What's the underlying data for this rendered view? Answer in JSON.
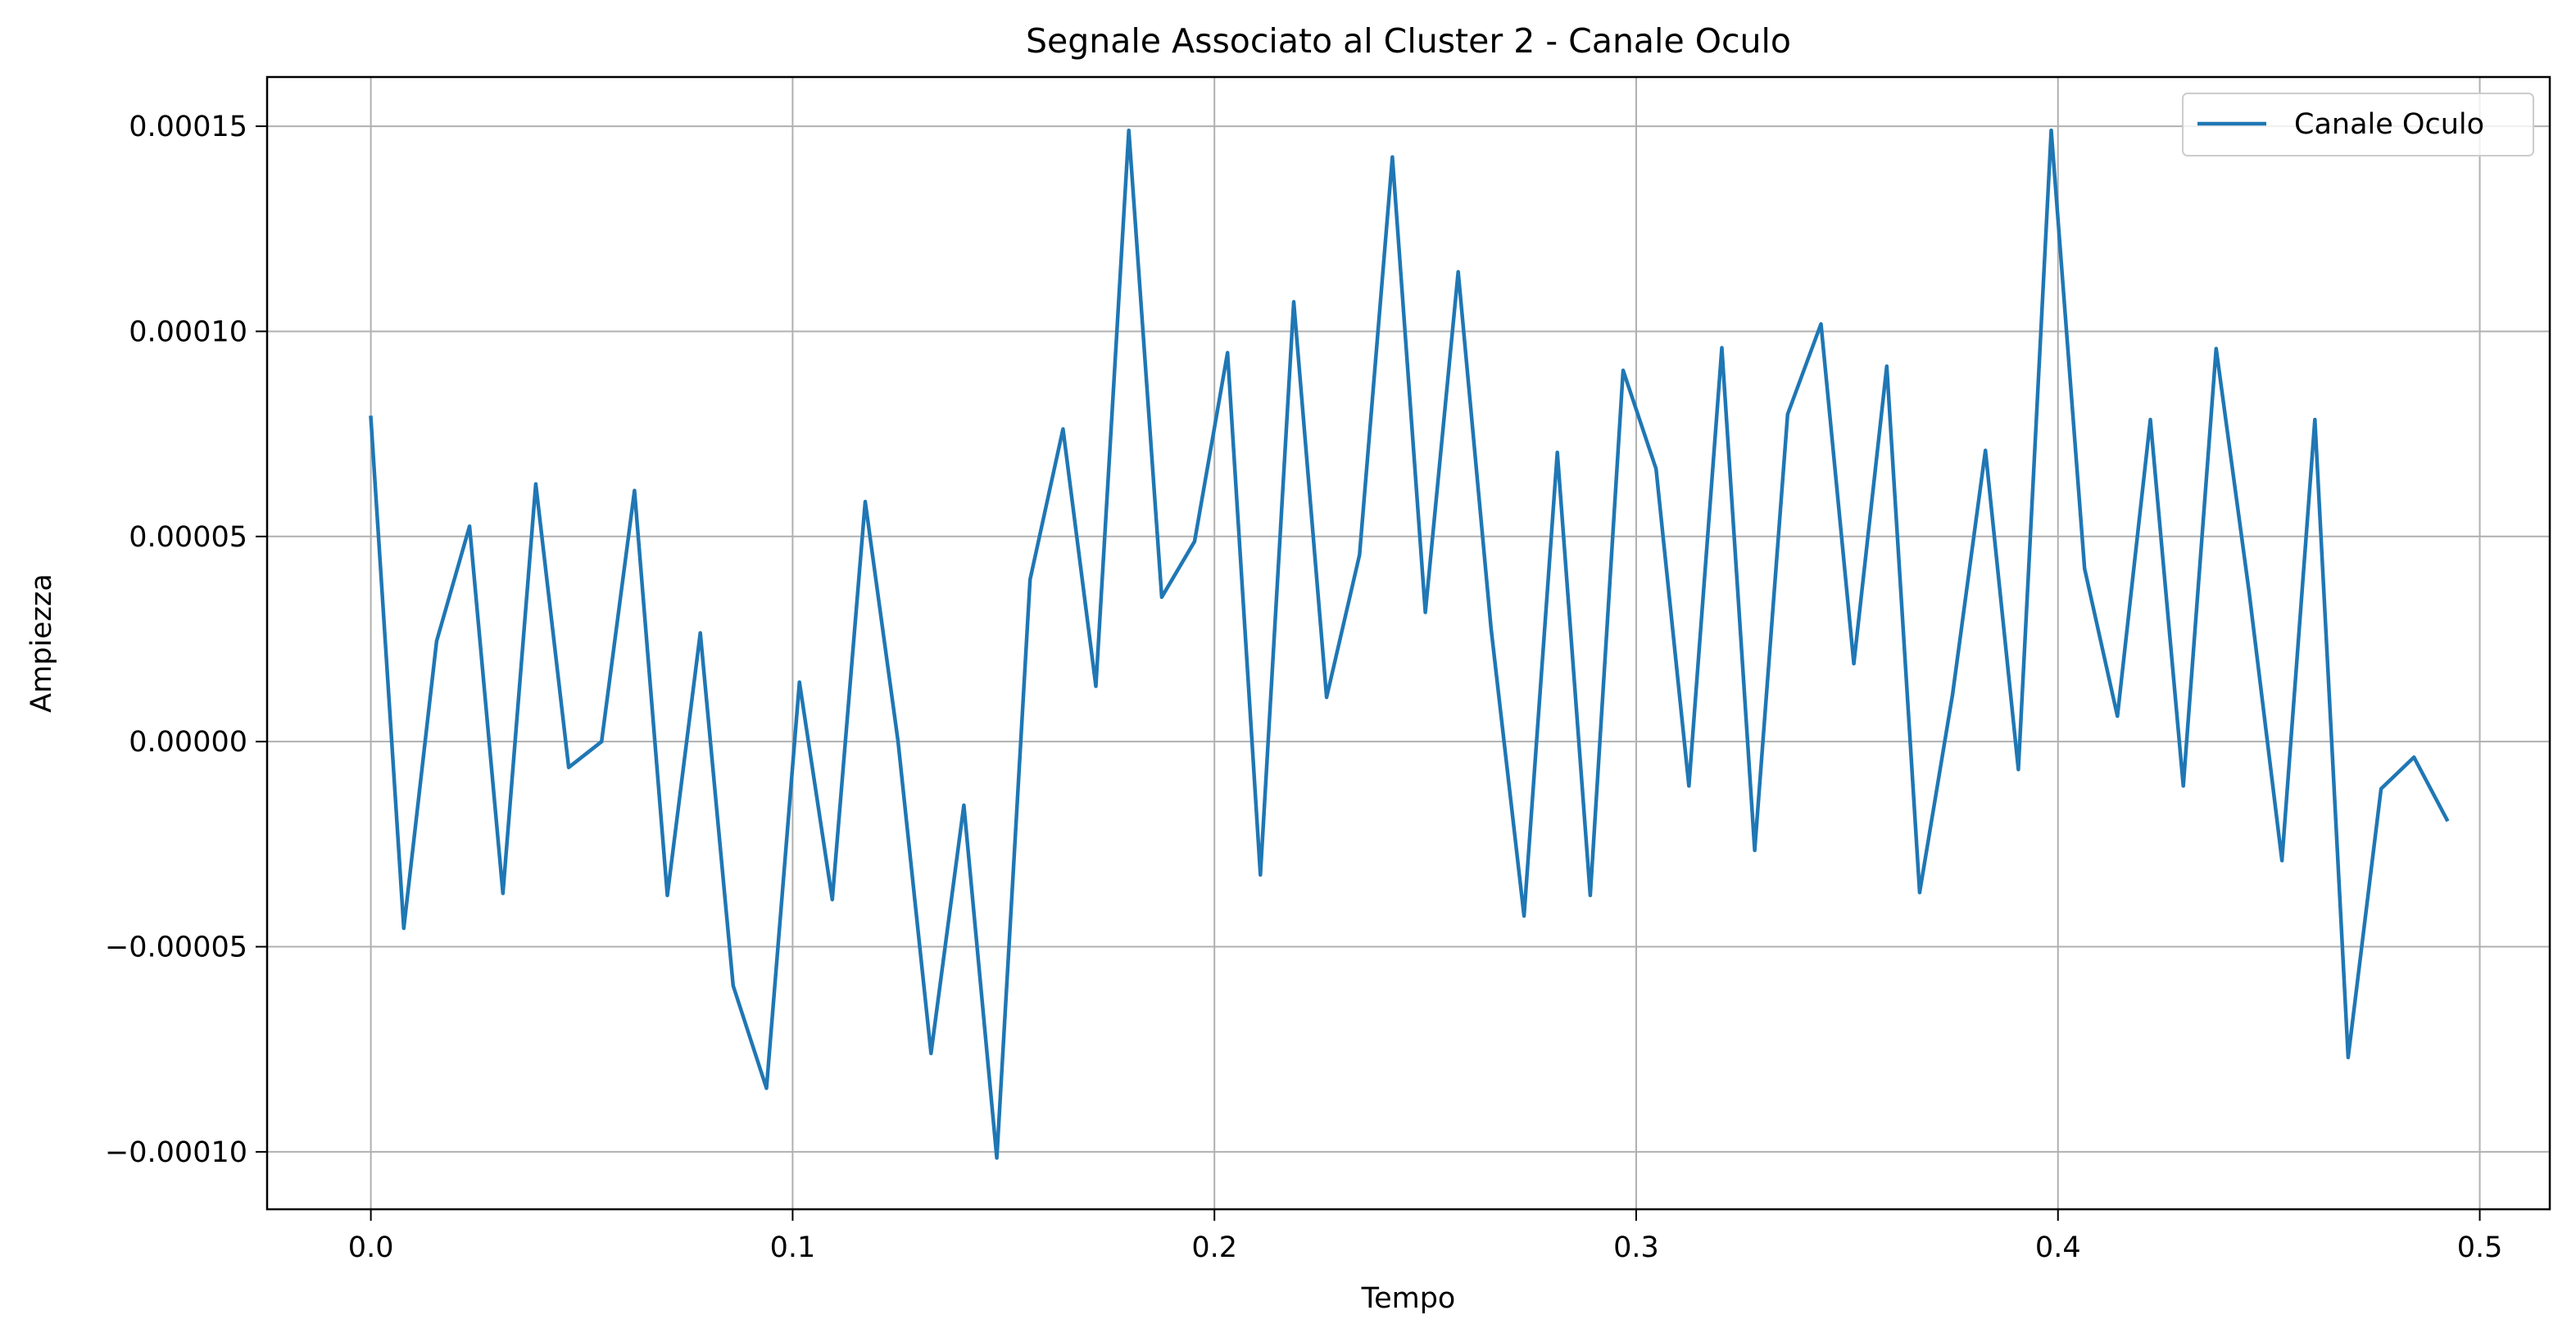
{
  "chart_data": {
    "type": "line",
    "title": "Segnale Associato al Cluster 2 - Canale Oculo",
    "xlabel": "Tempo",
    "ylabel": "Ampiezza",
    "xlim": [
      -0.0246,
      0.5166
    ],
    "ylim": [
      -0.000114,
      0.000162
    ],
    "x_ticks": [
      0.0,
      0.1,
      0.2,
      0.3,
      0.4,
      0.5
    ],
    "x_tick_labels": [
      "0.0",
      "0.1",
      "0.2",
      "0.3",
      "0.4",
      "0.5"
    ],
    "y_ticks": [
      -0.0001,
      -5e-05,
      0.0,
      5e-05,
      0.0001,
      0.00015
    ],
    "y_tick_labels": [
      "−0.00010",
      "−0.00005",
      "0.00000",
      "0.00005",
      "0.00010",
      "0.00015"
    ],
    "grid": true,
    "legend_position": "top-right",
    "series": [
      {
        "name": "Canale Oculo",
        "color": "#1f77b4",
        "x": [
          0.0,
          0.0078,
          0.0156,
          0.0234,
          0.0313,
          0.0391,
          0.0469,
          0.0547,
          0.0625,
          0.0703,
          0.0781,
          0.0859,
          0.0938,
          0.1016,
          0.1094,
          0.1172,
          0.125,
          0.1328,
          0.1406,
          0.1484,
          0.1563,
          0.1641,
          0.1719,
          0.1797,
          0.1875,
          0.1953,
          0.2031,
          0.2109,
          0.2188,
          0.2266,
          0.2344,
          0.2422,
          0.25,
          0.2578,
          0.2656,
          0.2734,
          0.2813,
          0.2891,
          0.2969,
          0.3047,
          0.3125,
          0.3203,
          0.3281,
          0.3359,
          0.3438,
          0.3516,
          0.3594,
          0.3672,
          0.375,
          0.3828,
          0.3906,
          0.3984,
          0.4063,
          0.4141,
          0.4219,
          0.4297,
          0.4375,
          0.4453,
          0.4531,
          0.4609,
          0.4688,
          0.4766,
          0.4844,
          0.4922
        ],
        "values": [
          7.9e-05,
          -4.55e-05,
          2.45e-05,
          5.25e-05,
          -3.7e-05,
          6.28e-05,
          -6.3e-06,
          0.0,
          6.12e-05,
          -3.75e-05,
          2.65e-05,
          -5.95e-05,
          -8.45e-05,
          1.45e-05,
          -3.85e-05,
          5.85e-05,
          0.0,
          -7.6e-05,
          -1.55e-05,
          -0.0001015,
          3.95e-05,
          7.62e-05,
          1.35e-05,
          0.000149,
          3.52e-05,
          4.88e-05,
          9.48e-05,
          -3.25e-05,
          0.0001072,
          1.08e-05,
          4.55e-05,
          0.0001425,
          3.15e-05,
          0.0001145,
          2.75e-05,
          -4.25e-05,
          7.05e-05,
          -3.75e-05,
          9.05e-05,
          6.65e-05,
          -1.08e-05,
          9.6e-05,
          -2.65e-05,
          7.98e-05,
          0.0001018,
          1.9e-05,
          9.15e-05,
          -3.68e-05,
          1.15e-05,
          7.1e-05,
          -6.8e-06,
          0.000149,
          4.22e-05,
          6.2e-06,
          7.85e-05,
          -1.08e-05,
          9.58e-05,
          3.65e-05,
          -2.9e-05,
          7.85e-05,
          -7.7e-05,
          -1.15e-05,
          -3.8e-06,
          -1.9e-05
        ]
      }
    ]
  }
}
